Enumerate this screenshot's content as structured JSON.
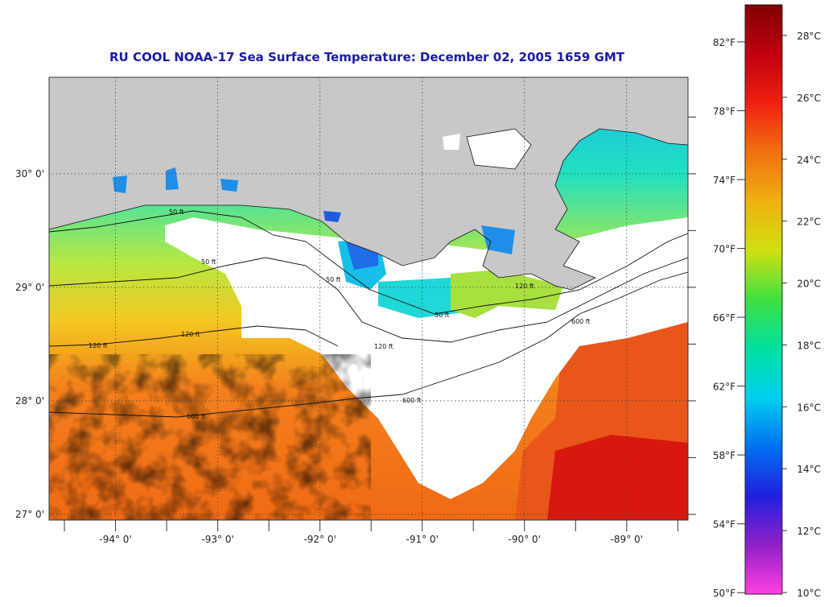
{
  "title": "RU COOL  NOAA-17  Sea Surface Temperature:  December 02, 2005 1659 GMT",
  "map": {
    "lon_range": [
      -94.65,
      -88.4
    ],
    "lat_range": [
      26.95,
      30.85
    ],
    "lon_ticks": [
      {
        "value": -94,
        "label": "-94° 0'"
      },
      {
        "value": -93,
        "label": "-93° 0'"
      },
      {
        "value": -92,
        "label": "-92° 0'"
      },
      {
        "value": -91,
        "label": "-91° 0'"
      },
      {
        "value": -90,
        "label": "-90° 0'"
      },
      {
        "value": -89,
        "label": "-89° 0'"
      }
    ],
    "lat_ticks": [
      {
        "value": 30,
        "label": "30° 0'"
      },
      {
        "value": 29,
        "label": "29° 0'"
      },
      {
        "value": 28,
        "label": "28° 0'"
      },
      {
        "value": 27,
        "label": "27° 0'"
      }
    ],
    "contour_labels": [
      "50 ft",
      "120 ft",
      "600 ft"
    ],
    "colors": {
      "land": "#c8c8c8",
      "cloud": "#ffffff",
      "warm": "#f47a1c",
      "hot": "#e01a10",
      "cool": "#19d8d0",
      "cold": "#1c8ef0"
    }
  },
  "colorbar": {
    "fahrenheit_labels": [
      "82°F",
      "78°F",
      "74°F",
      "70°F",
      "66°F",
      "62°F",
      "58°F",
      "54°F",
      "50°F"
    ],
    "celsius_labels": [
      "28°C",
      "26°C",
      "24°C",
      "22°C",
      "20°C",
      "18°C",
      "16°C",
      "14°C",
      "12°C",
      "10°C"
    ],
    "gradient": [
      "#ff40e0",
      "#9020c8",
      "#2020e0",
      "#0070f0",
      "#00d0f0",
      "#00e0a0",
      "#40e040",
      "#d0e010",
      "#f0b010",
      "#f07010",
      "#f02010",
      "#c00010",
      "#800000"
    ]
  }
}
